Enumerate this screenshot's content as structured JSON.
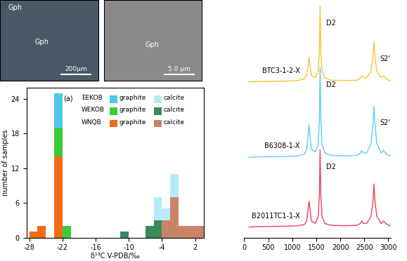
{
  "images": [
    {
      "labels": [
        "Gph",
        "Gph"
      ],
      "scale_bar": "200μm",
      "color": "#4a5866"
    },
    {
      "labels": [
        "Gph"
      ],
      "scale_bar": "5.0 μm",
      "color": "#8a8a8a"
    }
  ],
  "chart_data": [
    {
      "type": "histogram",
      "annotation": "(a)",
      "x_label": "δ¹³C V-PDB/‰",
      "y_label": "number of samples",
      "bins": [
        -28,
        -26.5,
        -25,
        -23.5,
        -22,
        -20.5,
        -19,
        -17.5,
        -16,
        -14.5,
        -13,
        -11.5,
        -10,
        -8.5,
        -7,
        -5.5,
        -4,
        -2.5,
        -1,
        0.5,
        2,
        3.5
      ],
      "stacked": true,
      "legend": "upper center",
      "series": [
        {
          "region": "EEKOB",
          "name": "graphite",
          "color": "#4fc8e8",
          "values": [
            0,
            0,
            0,
            6,
            0,
            0,
            0,
            0,
            0,
            0,
            0,
            0,
            0,
            0,
            0,
            0,
            0,
            0,
            0,
            0,
            0
          ]
        },
        {
          "region": "EEKOB",
          "name": "calcite",
          "color": "#b5ebf7",
          "values": [
            0,
            0,
            0,
            0,
            0,
            0,
            0,
            0,
            0,
            0,
            0,
            0,
            0,
            0,
            0,
            4,
            2,
            4,
            0,
            0,
            0
          ]
        },
        {
          "region": "WEKOB",
          "name": "graphite",
          "color": "#3acb3a",
          "values": [
            0,
            0,
            0,
            5,
            2,
            0,
            0,
            0,
            0,
            0,
            0,
            0,
            0,
            0,
            0,
            0,
            0,
            0,
            0,
            0,
            0
          ]
        },
        {
          "region": "WEKOB",
          "name": "calcite",
          "color": "#3a8a5c",
          "values": [
            0,
            0,
            0,
            0,
            0,
            0,
            0,
            0,
            0,
            0,
            0,
            1,
            0,
            0,
            2,
            3,
            0,
            0,
            0,
            0,
            0
          ]
        },
        {
          "region": "WNQB",
          "name": "graphite",
          "color": "#f26a12",
          "values": [
            1,
            2,
            0,
            14,
            0,
            0,
            0,
            0,
            0,
            0,
            0,
            0,
            0,
            0,
            0,
            0,
            0,
            0,
            0,
            0,
            0
          ]
        },
        {
          "region": "WNQB",
          "name": "calcite",
          "color": "#c98468",
          "values": [
            0,
            0,
            0,
            0,
            0,
            0,
            0,
            0,
            0,
            0,
            0,
            0,
            0,
            0,
            0,
            0,
            3,
            7,
            2,
            2,
            2
          ]
        }
      ],
      "xlim": [
        -28.5,
        3.5
      ],
      "xticks": [
        -28,
        -22,
        -16,
        -10,
        -4,
        2
      ],
      "ylim": [
        0,
        26
      ],
      "yticks": [
        0,
        6,
        12,
        18,
        24
      ]
    },
    {
      "type": "line",
      "tick_labels": "x",
      "x": [
        100,
        500,
        900,
        1100,
        1250,
        1300,
        1330,
        1350,
        1370,
        1400,
        1480,
        1540,
        1565,
        1580,
        1595,
        1620,
        1680,
        1800,
        2100,
        2350,
        2420,
        2450,
        2480,
        2550,
        2640,
        2680,
        2700,
        2720,
        2760,
        2850,
        2900,
        2940,
        2980,
        3050
      ],
      "series": [
        {
          "name": "BTC3-1-2-X",
          "color": "#f2c531",
          "values": [
            6.63,
            6.65,
            6.66,
            6.68,
            6.75,
            6.9,
            7.3,
            7.67,
            7.3,
            6.9,
            6.8,
            7.1,
            7.9,
            9.85,
            7.9,
            7.1,
            6.8,
            6.7,
            6.68,
            6.7,
            6.8,
            6.88,
            6.8,
            6.8,
            7.1,
            7.7,
            8.33,
            7.7,
            7.1,
            6.8,
            6.88,
            6.8,
            6.72,
            6.68
          ],
          "peak_labels": [
            {
              "text": "D2",
              "x": 1580
            },
            {
              "text": "S2'",
              "x": 2700
            }
          ]
        },
        {
          "name": "B6308-1-X",
          "color": "#5ad0e8",
          "values": [
            3.42,
            3.44,
            3.45,
            3.47,
            3.55,
            3.75,
            4.3,
            4.8,
            4.3,
            3.75,
            3.65,
            3.95,
            5.0,
            7.23,
            5.0,
            3.95,
            3.6,
            3.5,
            3.47,
            3.5,
            3.6,
            3.7,
            3.6,
            3.6,
            4.0,
            4.8,
            5.6,
            4.9,
            4.0,
            3.6,
            3.7,
            3.6,
            3.52,
            3.48
          ],
          "peak_labels": [
            {
              "text": "D2",
              "x": 1580
            },
            {
              "text": "S2'",
              "x": 2700
            }
          ]
        },
        {
          "name": "B2011TC1-1-X",
          "color": "#e8455a",
          "values": [
            0.45,
            0.47,
            0.48,
            0.5,
            0.55,
            0.7,
            1.2,
            1.55,
            1.2,
            0.7,
            0.6,
            0.9,
            1.8,
            3.74,
            1.8,
            0.9,
            0.6,
            0.52,
            0.5,
            0.52,
            0.6,
            0.7,
            0.6,
            0.6,
            0.9,
            1.5,
            2.28,
            1.6,
            0.9,
            0.6,
            0.7,
            0.62,
            0.55,
            0.5
          ],
          "peak_labels": [
            {
              "text": "D2",
              "x": 1580
            }
          ]
        }
      ],
      "xlim": [
        0,
        3050
      ],
      "xticks": [
        0,
        500,
        1000,
        1500,
        2000,
        2500,
        3000
      ],
      "ylim": [
        0,
        10
      ]
    }
  ]
}
